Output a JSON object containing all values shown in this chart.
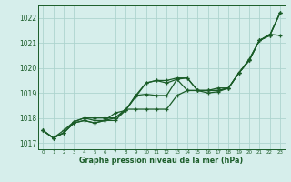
{
  "xlabel": "Graphe pression niveau de la mer (hPa)",
  "x": [
    0,
    1,
    2,
    3,
    4,
    5,
    6,
    7,
    8,
    9,
    10,
    11,
    12,
    13,
    14,
    15,
    16,
    17,
    18,
    19,
    20,
    21,
    22,
    23
  ],
  "line1": [
    1017.5,
    1017.2,
    1017.4,
    1017.8,
    1017.9,
    1017.8,
    1017.9,
    1018.0,
    1018.3,
    1018.9,
    1019.4,
    1019.5,
    1019.5,
    1019.6,
    1019.6,
    1019.1,
    1019.1,
    1019.1,
    1019.2,
    1019.8,
    1020.3,
    1021.1,
    1021.3,
    1022.2
  ],
  "line2": [
    1017.5,
    1017.2,
    1017.4,
    1017.8,
    1017.9,
    1017.8,
    1017.9,
    1018.2,
    1018.3,
    1018.85,
    1019.4,
    1019.5,
    1019.4,
    1019.55,
    1019.1,
    1019.1,
    1019.1,
    1019.1,
    1019.2,
    1019.8,
    1020.35,
    1021.1,
    1021.35,
    1021.3
  ],
  "line3": [
    1017.5,
    1017.2,
    1017.5,
    1017.85,
    1018.0,
    1017.9,
    1017.9,
    1017.9,
    1018.3,
    1018.9,
    1018.95,
    1018.9,
    1018.9,
    1019.55,
    1019.6,
    1019.1,
    1019.0,
    1019.05,
    1019.2,
    1019.8,
    1020.3,
    1021.1,
    1021.3,
    1022.2
  ],
  "line4": [
    1017.5,
    1017.2,
    1017.4,
    1017.85,
    1018.0,
    1018.0,
    1018.0,
    1018.0,
    1018.35,
    1018.35,
    1018.35,
    1018.35,
    1018.35,
    1018.9,
    1019.1,
    1019.1,
    1019.1,
    1019.2,
    1019.2,
    1019.8,
    1020.3,
    1021.1,
    1021.3,
    1022.2
  ],
  "bg_color": "#d6eeeb",
  "grid_color": "#aed4cf",
  "line_color": "#1a5c28",
  "ylim_min": 1016.75,
  "ylim_max": 1022.5,
  "yticks": [
    1017,
    1018,
    1019,
    1020,
    1021,
    1022
  ],
  "xtick_labels": [
    "0",
    "1",
    "2",
    "3",
    "4",
    "5",
    "6",
    "7",
    "8",
    "9",
    "10",
    "11",
    "12",
    "13",
    "14",
    "15",
    "16",
    "17",
    "18",
    "19",
    "20",
    "21",
    "22",
    "23"
  ],
  "marker": "+",
  "markersize": 3.5,
  "linewidth": 0.9
}
